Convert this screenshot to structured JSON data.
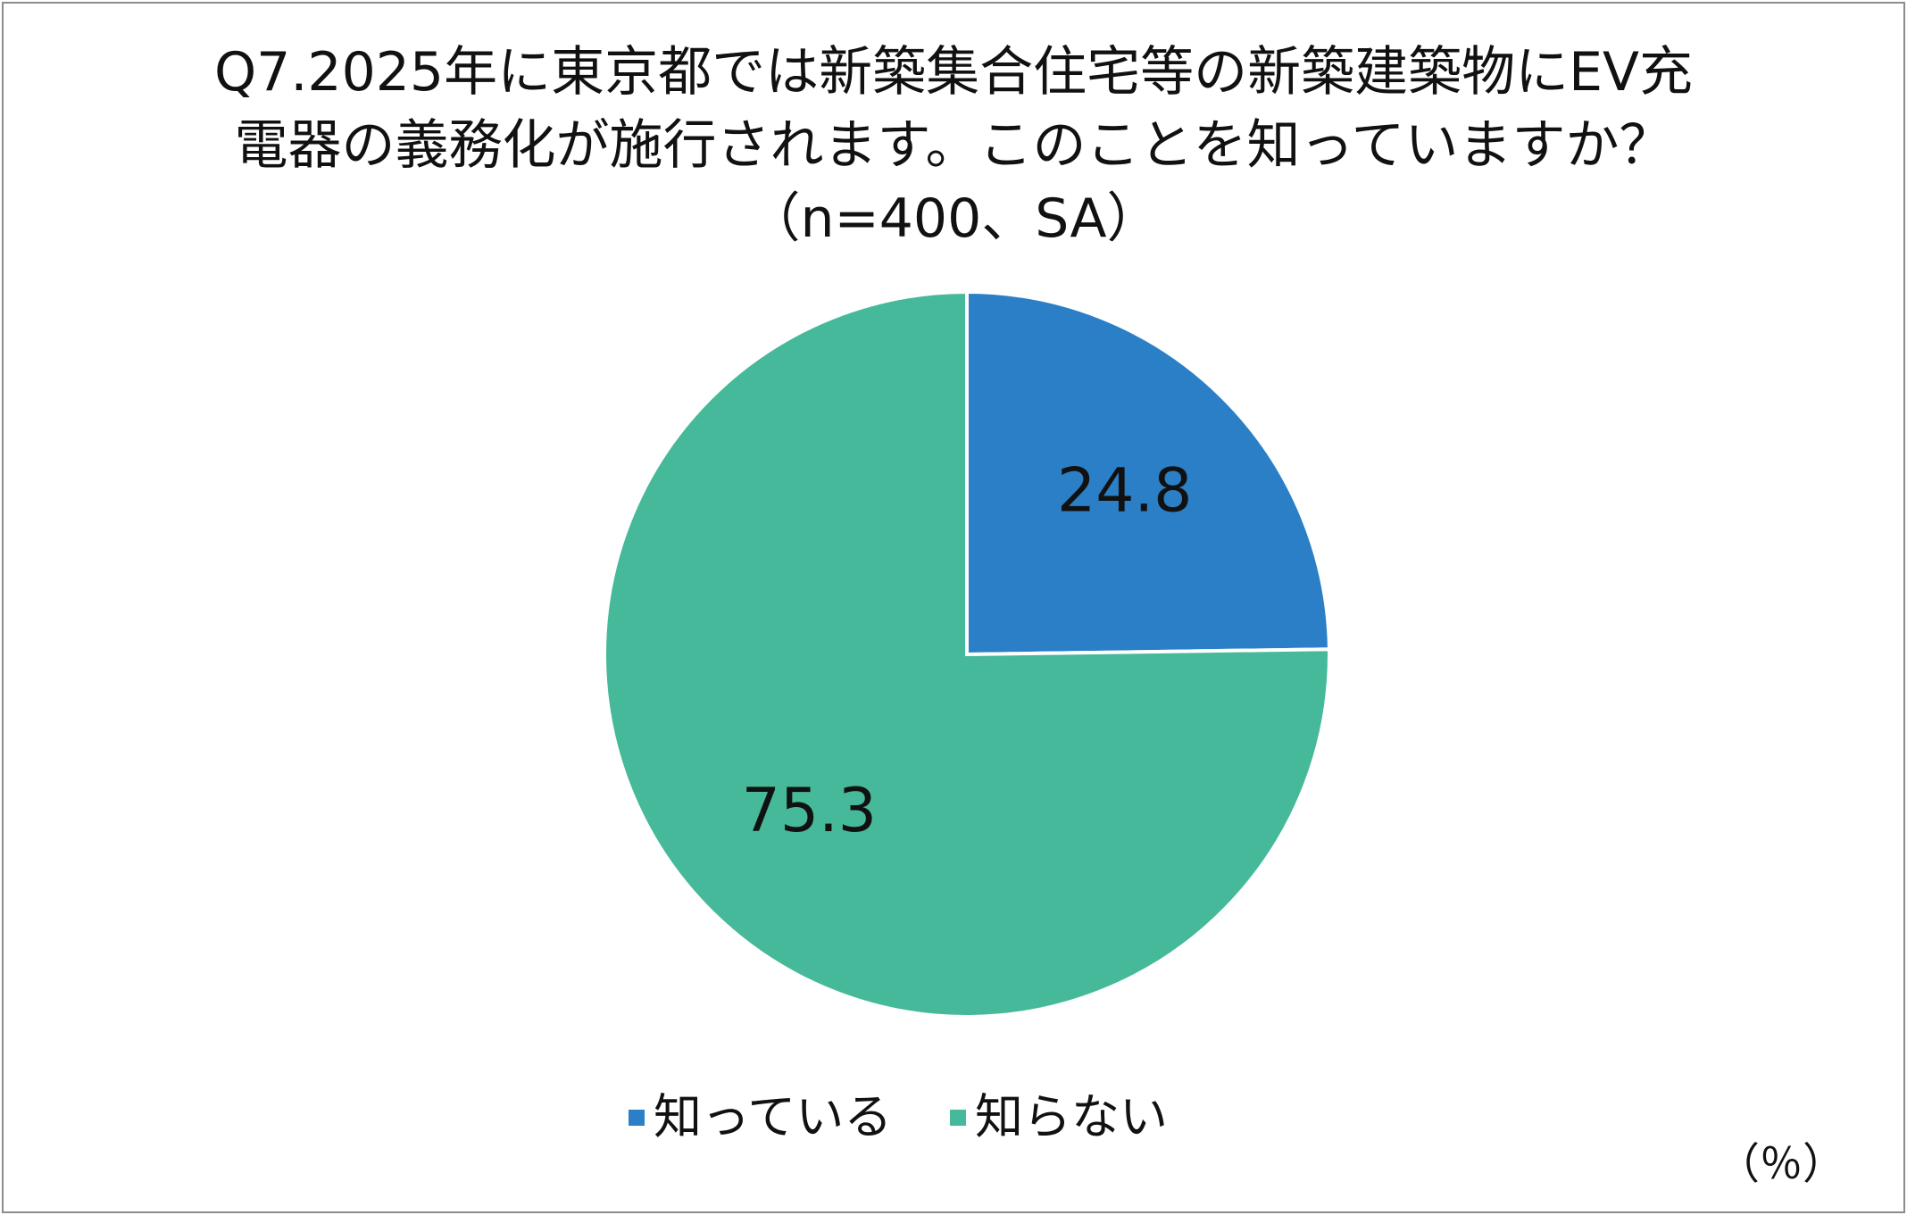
{
  "chart_data": {
    "type": "pie",
    "title": "Q7.2025年に東京都では新築集合住宅等の新築建築物にEV充電器の義務化が施行されます。このことを知っていますか？（n=400、SA）",
    "categories": [
      "知っている",
      "知らない"
    ],
    "values": [
      24.8,
      75.3
    ],
    "colors": [
      "#2a7fc6",
      "#45b99a"
    ],
    "unit_note": "（％）"
  }
}
